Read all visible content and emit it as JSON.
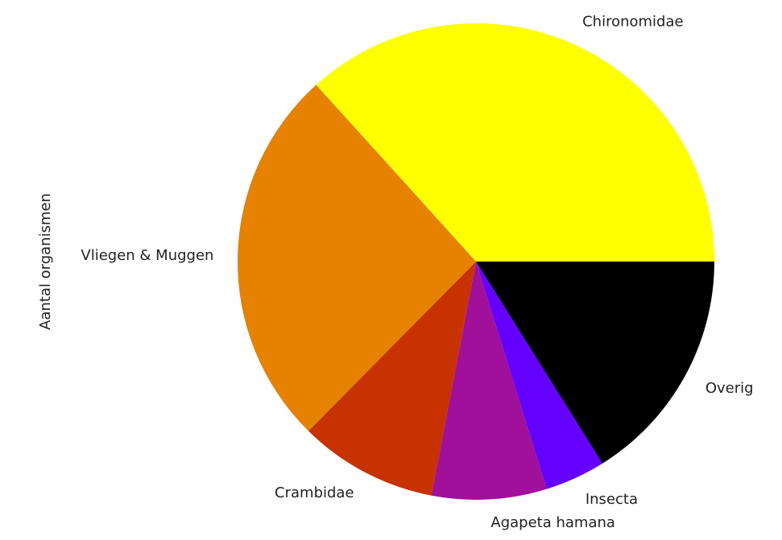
{
  "chart_data": {
    "type": "pie",
    "ylabel": "Aantal organismen",
    "categories": [
      "Chironomidae",
      "Vliegen & Muggen",
      "Crambidae",
      "Agapeta hamana",
      "Insecta",
      "Overig"
    ],
    "values": [
      36.7,
      25.9,
      9.4,
      7.8,
      4.1,
      16.1
    ],
    "colors": [
      "#ffff00",
      "#e68200",
      "#c83200",
      "#a0109b",
      "#6400ff",
      "#000000"
    ]
  }
}
